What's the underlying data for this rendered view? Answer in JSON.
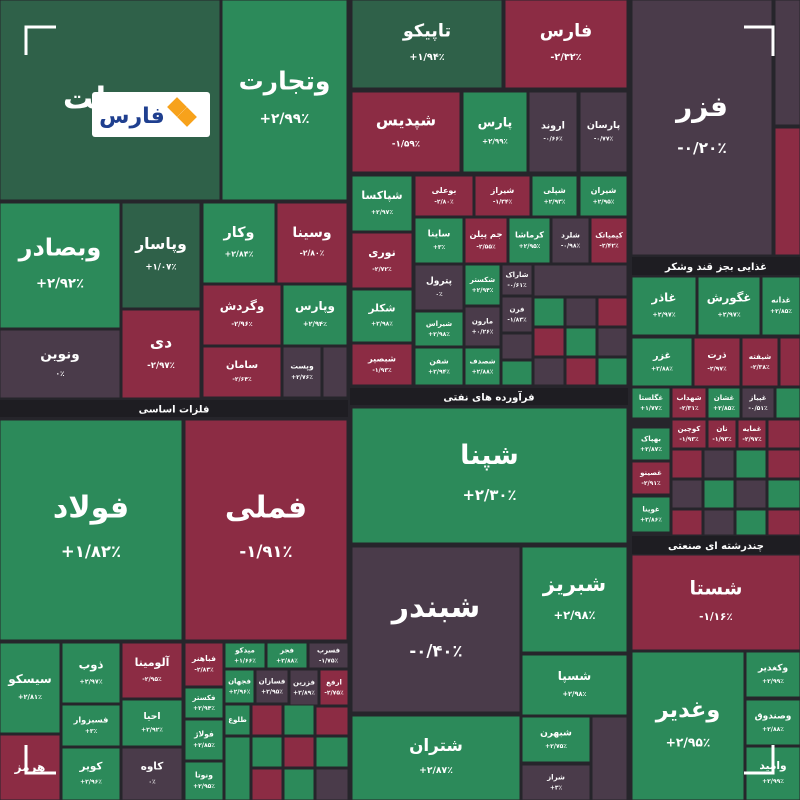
{
  "logo": "فارس",
  "sections": [
    {
      "label": "فلزات اساسی"
    },
    {
      "label": "فرآورده های نفتی"
    },
    {
      "label": "غذایی بجز قند وشکر"
    },
    {
      "label": "چندرشته ای صنعتی"
    }
  ],
  "tiles": [
    {
      "name": "وبملت"
    },
    {
      "name": "وتجارت",
      "change": "+۲/۹۹٪"
    },
    {
      "name": "وبصادر",
      "change": "+۲/۹۲٪"
    },
    {
      "name": "ونوین",
      "change": "۰٪"
    },
    {
      "name": "وپاسار",
      "change": "+۱/۰۷٪"
    },
    {
      "name": "وکار",
      "change": "+۲/۸۴٪"
    },
    {
      "name": "وسینا",
      "change": "-۲/۸۰٪"
    },
    {
      "name": "دی",
      "change": "-۲/۹۷٪"
    },
    {
      "name": "وگردش",
      "change": "-۲/۹۶٪"
    },
    {
      "name": "وپارس",
      "change": "+۲/۹۴٪"
    },
    {
      "name": "سامان",
      "change": "-۲/۶۴٪"
    },
    {
      "name": "وپست",
      "change": "+۲/۷۶٪"
    },
    {
      "name": "فولاد",
      "change": "+۱/۸۲٪"
    },
    {
      "name": "فملی",
      "change": "-۱/۹۱٪"
    },
    {
      "name": "سیسکو",
      "change": "+۲/۸۱٪"
    },
    {
      "name": "ذوب",
      "change": "+۲/۹۷٪"
    },
    {
      "name": "آلومینا",
      "change": "-۲/۹۵٪"
    },
    {
      "name": "فباهنر",
      "change": "-۲/۸۳٪"
    },
    {
      "name": "میدکو",
      "change": "+۱/۶۶٪"
    },
    {
      "name": "فجر",
      "change": "+۲/۸۸٪"
    },
    {
      "name": "فسرب",
      "change": "-۱/۷۵٪"
    },
    {
      "name": "فسبزوار",
      "change": "+۳٪"
    },
    {
      "name": "احیا",
      "change": "+۲/۹۲٪"
    },
    {
      "name": "فکستر",
      "change": "+۲/۹۴٪"
    },
    {
      "name": "فجهان",
      "change": "+۲/۹۶٪"
    },
    {
      "name": "فسازان",
      "change": "+۲/۹۵٪"
    },
    {
      "name": "فزرین",
      "change": "+۲/۸۹٪"
    },
    {
      "name": "ارفع",
      "change": "-۲/۷۵٪"
    },
    {
      "name": "هرمز"
    },
    {
      "name": "کویر",
      "change": "+۲/۹۶٪"
    },
    {
      "name": "کاوه",
      "change": "۰٪"
    },
    {
      "name": "فولاژ",
      "change": "+۲/۸۵٪"
    },
    {
      "name": "طلوع"
    },
    {
      "name": "ونوتا",
      "change": "+۲/۹۵٪"
    },
    {
      "name": "تاپیکو",
      "change": "+۱/۹۴٪"
    },
    {
      "name": "فارس",
      "change": "-۲/۳۲٪"
    },
    {
      "name": "شپدیس",
      "change": "-۱/۵۹٪"
    },
    {
      "name": "پارس",
      "change": "+۲/۹۹٪"
    },
    {
      "name": "اروند",
      "change": "-۰/۶۶٪"
    },
    {
      "name": "پارسان",
      "change": "-۰/۷۷٪"
    },
    {
      "name": "شپاکسا",
      "change": "+۲/۹۷٪"
    },
    {
      "name": "بوعلی",
      "change": "-۲/۸۰٪"
    },
    {
      "name": "شیراز",
      "change": "-۱/۳۴٪"
    },
    {
      "name": "شپلی",
      "change": "+۲/۹۳٪"
    },
    {
      "name": "شیران",
      "change": "+۲/۹۵٪"
    },
    {
      "name": "نوری",
      "change": "-۲/۷۲٪"
    },
    {
      "name": "ساینا",
      "change": "+۳٪"
    },
    {
      "name": "جم پیلن",
      "change": "-۲/۵۵٪"
    },
    {
      "name": "کرماشا",
      "change": "+۲/۹۵٪"
    },
    {
      "name": "شلرد",
      "change": "-۰/۹۸٪"
    },
    {
      "name": "کیمیاتک",
      "change": "-۲/۴۲٪"
    },
    {
      "name": "پترول",
      "change": "۰٪"
    },
    {
      "name": "شکستر",
      "change": "+۲/۹۴٪"
    },
    {
      "name": "شاراک",
      "change": "-۰/۶۱٪"
    },
    {
      "name": "شکلر",
      "change": "+۲/۹۸٪"
    },
    {
      "name": "شیراس",
      "change": "+۲/۹۸٪"
    },
    {
      "name": "مارون",
      "change": "+۰/۲۶٪"
    },
    {
      "name": "فرن",
      "change": "-۱/۸۳٪"
    },
    {
      "name": "شبصیر",
      "change": "-۱/۹۳٪"
    },
    {
      "name": "شفن",
      "change": "+۲/۹۴٪"
    },
    {
      "name": "شصدف",
      "change": "+۲/۸۸٪"
    },
    {
      "name": "شپنا",
      "change": "+۲/۳۰٪"
    },
    {
      "name": "شبندر",
      "change": "-۰/۴۰٪"
    },
    {
      "name": "شبریز",
      "change": "+۲/۹۸٪"
    },
    {
      "name": "شسپا",
      "change": "+۲/۹۸٪"
    },
    {
      "name": "شتران",
      "change": "+۲/۸۷٪"
    },
    {
      "name": "شبهرن",
      "change": "+۲/۷۵٪"
    },
    {
      "name": "شراز",
      "change": "+۳٪"
    },
    {
      "name": "فزر",
      "change": "-۰/۲۰٪"
    },
    {
      "name": "غاذر",
      "change": "+۲/۹۷٪"
    },
    {
      "name": "غگورش",
      "change": "+۲/۹۷٪"
    },
    {
      "name": "غدانه",
      "change": "+۲/۸۵٪"
    },
    {
      "name": "غزر",
      "change": "+۲/۸۸٪"
    },
    {
      "name": "ذرت",
      "change": "-۲/۹۷٪"
    },
    {
      "name": "شیفته",
      "change": "-۲/۳۸٪"
    },
    {
      "name": "غگلستا",
      "change": "+۱/۷۷٪"
    },
    {
      "name": "شهداب",
      "change": "-۲/۳۱٪"
    },
    {
      "name": "غشان",
      "change": "+۲/۸۵٪"
    },
    {
      "name": "غپیاز",
      "change": "-۰/۵۱٪"
    },
    {
      "name": "کوچین",
      "change": "-۱/۹۳٪"
    },
    {
      "name": "نان",
      "change": "-۱/۹۳٪"
    },
    {
      "name": "غمایه",
      "change": "-۲/۹۷٪"
    },
    {
      "name": "بهپاک",
      "change": "+۲/۸۷٪"
    },
    {
      "name": "غصینو",
      "change": "-۲/۹۱٪"
    },
    {
      "name": "غوینا",
      "change": "+۲/۸۶٪"
    },
    {
      "name": "شستا",
      "change": "-۱/۱۶٪"
    },
    {
      "name": "وغدیر",
      "change": "+۲/۹۵٪"
    },
    {
      "name": "وکغدیر",
      "change": "+۲/۹۹٪"
    },
    {
      "name": "وصندوق",
      "change": "+۲/۸۸٪"
    },
    {
      "name": "وامید",
      "change": "+۲/۹۹٪"
    }
  ]
}
